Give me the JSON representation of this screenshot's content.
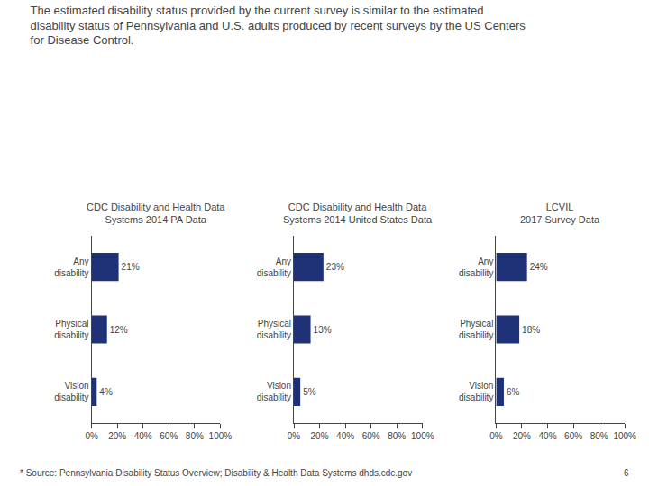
{
  "title": "The estimated disability status provided by the current survey is similar to the estimated\ndisability status of Pennsylvania and U.S. adults produced by recent surveys by the US Centers\nfor Disease Control.",
  "annotations": [
    "* Source: Pennsylvania Disability Status Overview; Disability & Health Data Systems dhds.cdc.gov",
    "6"
  ],
  "chart_data": [
    {
      "type": "bar",
      "orientation": "horizontal",
      "title": "CDC Disability and Health Data\nSystems 2014 PA Data",
      "categories": [
        "Any\ndisability",
        "Physical\ndisability",
        "Vision\ndisability"
      ],
      "values": [
        21,
        12,
        4
      ],
      "value_labels": [
        "21%",
        "12%",
        "4%"
      ],
      "data_labels": true,
      "color": "#1F3278",
      "grid": false,
      "xlim": [
        0,
        100
      ],
      "xticks": [
        {
          "value": 0,
          "label": "0%"
        },
        {
          "value": 20,
          "label": "20%"
        },
        {
          "value": 40,
          "label": "40%"
        },
        {
          "value": 60,
          "label": "60%"
        },
        {
          "value": 80,
          "label": "80%"
        },
        {
          "value": 100,
          "label": "100%"
        }
      ]
    },
    {
      "type": "bar",
      "orientation": "horizontal",
      "title": "CDC Disability and Health Data\nSystems 2014 United States Data",
      "categories": [
        "Any\ndisability",
        "Physical\ndisability",
        "Vision\ndisability"
      ],
      "values": [
        23,
        13,
        5
      ],
      "value_labels": [
        "23%",
        "13%",
        "5%"
      ],
      "data_labels": true,
      "color": "#1F3278",
      "grid": false,
      "xlim": [
        0,
        100
      ],
      "xticks": [
        {
          "value": 0,
          "label": "0%"
        },
        {
          "value": 20,
          "label": "20%"
        },
        {
          "value": 40,
          "label": "40%"
        },
        {
          "value": 60,
          "label": "60%"
        },
        {
          "value": 80,
          "label": "80%"
        },
        {
          "value": 100,
          "label": "100%"
        }
      ]
    },
    {
      "type": "bar",
      "orientation": "horizontal",
      "title": "LCVIL\n2017 Survey Data",
      "categories": [
        "Any\ndisability",
        "Physical\ndisability",
        "Vision\ndisability"
      ],
      "values": [
        24,
        18,
        6
      ],
      "value_labels": [
        "24%",
        "18%",
        "6%"
      ],
      "data_labels": true,
      "color": "#1F3278",
      "grid": false,
      "xlim": [
        0,
        100
      ],
      "xticks": [
        {
          "value": 0,
          "label": "0%"
        },
        {
          "value": 20,
          "label": "20%"
        },
        {
          "value": 40,
          "label": "40%"
        },
        {
          "value": 60,
          "label": "60%"
        },
        {
          "value": 80,
          "label": "80%"
        },
        {
          "value": 100,
          "label": "100%"
        }
      ]
    }
  ]
}
